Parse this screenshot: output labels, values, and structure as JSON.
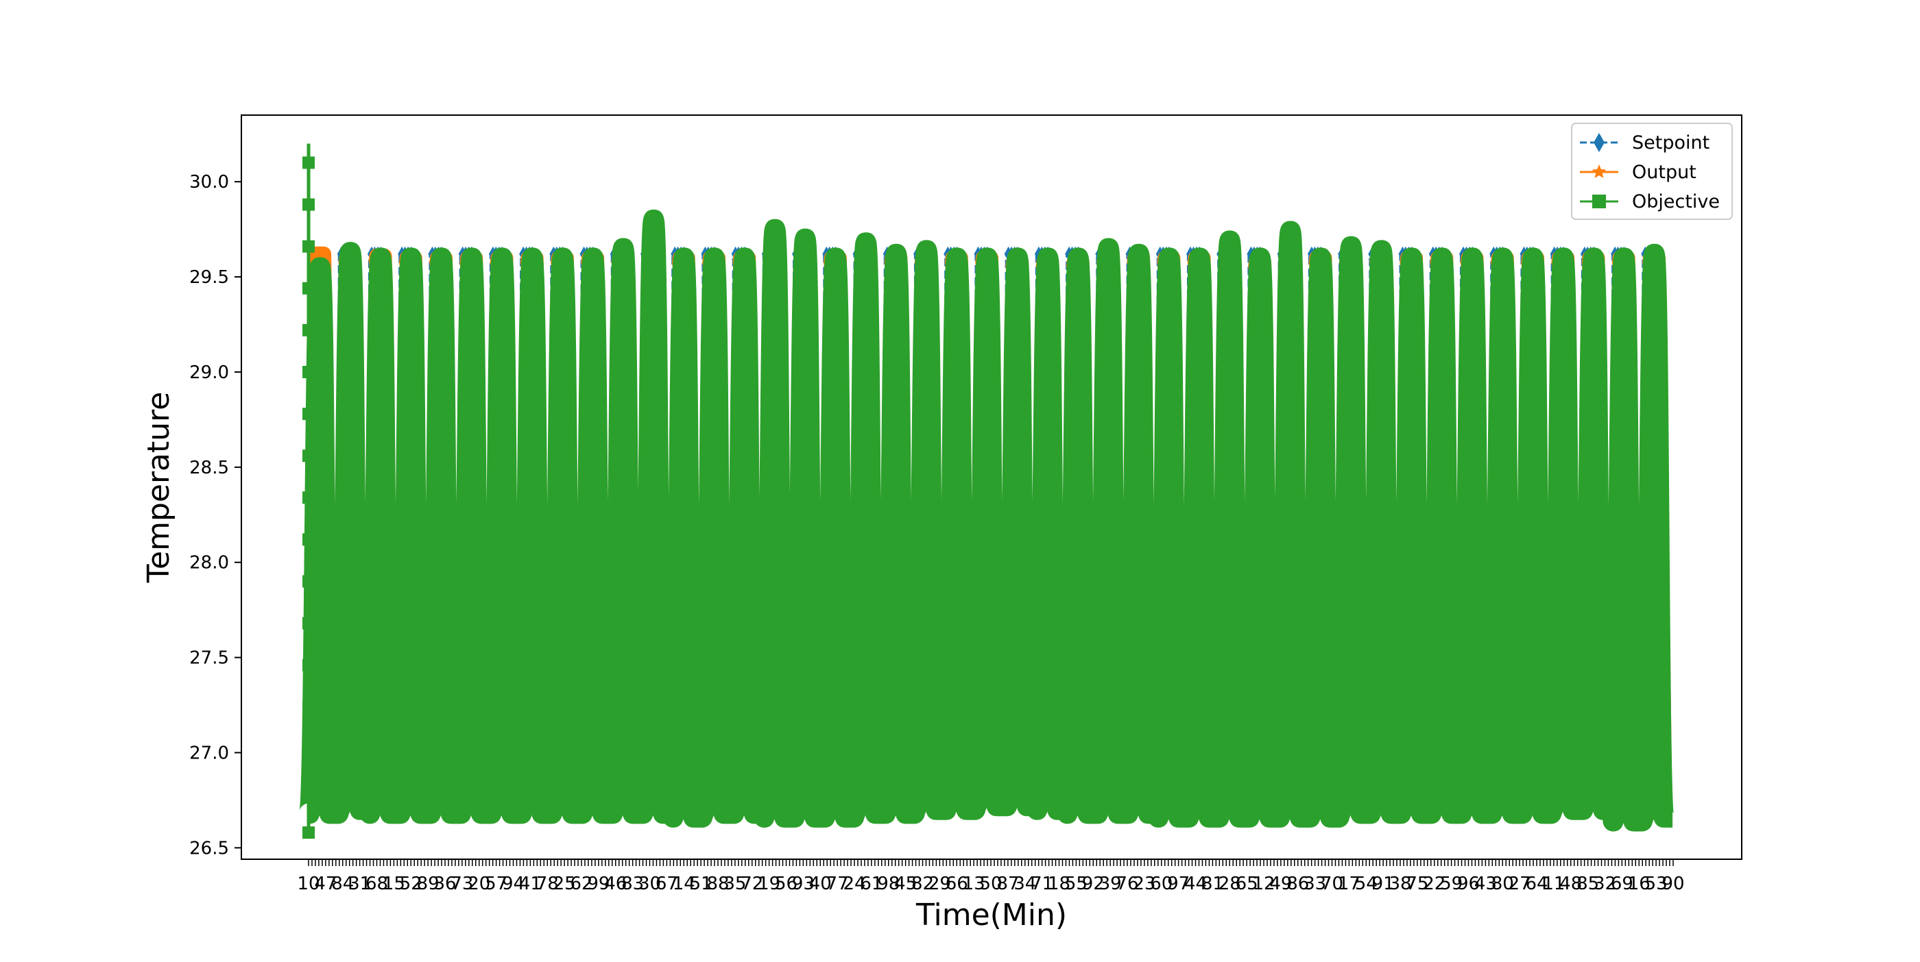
{
  "chart_data": {
    "type": "line",
    "title": "",
    "xlabel": "Time(Min)",
    "ylabel": "Temperature",
    "xlim": [
      0,
      45
    ],
    "ylim": [
      26.44,
      30.35
    ],
    "yticks": [
      26.5,
      27.0,
      27.5,
      28.0,
      28.5,
      29.0,
      29.5,
      30.0
    ],
    "ytick_labels": [
      "26.5",
      "27.0",
      "27.5",
      "28.0",
      "28.5",
      "29.0",
      "29.5",
      "30.0"
    ],
    "xticks_note": "dense overlapping tick labels along the x-axis",
    "legend_position": "top-right",
    "grid": false,
    "cycles": 45,
    "series": [
      {
        "name": "Setpoint",
        "color": "#1f77b4",
        "marker": "diamond",
        "linestyle": "dashed",
        "description": "square-wave between high and low set temperatures",
        "high": 29.62,
        "low": 26.7
      },
      {
        "name": "Output",
        "color": "#ff7f0e",
        "marker": "star",
        "linestyle": "solid",
        "description": "tracks setpoint, oscillating between about 26.7 and 29.6",
        "peaks": [
          29.62,
          29.6,
          29.61,
          29.6,
          29.6,
          29.6,
          29.6,
          29.6,
          29.6,
          29.6,
          29.6,
          29.58,
          29.6,
          29.6,
          29.6,
          29.6,
          29.58,
          29.6,
          29.6,
          29.6,
          29.6,
          29.6,
          29.6,
          29.58,
          29.58,
          29.58,
          29.6,
          29.6,
          29.6,
          29.6,
          29.6,
          29.58,
          29.6,
          29.6,
          29.6,
          29.6,
          29.6,
          29.6,
          29.6,
          29.6,
          29.6,
          29.6,
          29.6,
          29.6,
          29.6
        ]
      },
      {
        "name": "Objective",
        "color": "#2ca02c",
        "marker": "square",
        "linestyle": "solid",
        "description": "oscillates between about 26.65 and 29.6, with an initial spike near 30.2",
        "initial_max": 30.2,
        "initial_min": 26.58,
        "peaks": [
          29.55,
          29.63,
          29.6,
          29.6,
          29.6,
          29.6,
          29.6,
          29.6,
          29.6,
          29.6,
          29.65,
          29.8,
          29.6,
          29.6,
          29.6,
          29.75,
          29.7,
          29.6,
          29.68,
          29.62,
          29.64,
          29.6,
          29.6,
          29.6,
          29.6,
          29.6,
          29.65,
          29.62,
          29.6,
          29.6,
          29.69,
          29.6,
          29.74,
          29.6,
          29.66,
          29.64,
          29.6,
          29.6,
          29.6,
          29.6,
          29.6,
          29.6,
          29.6,
          29.6,
          29.62
        ],
        "troughs": [
          26.68,
          26.7,
          26.68,
          26.68,
          26.68,
          26.68,
          26.68,
          26.68,
          26.68,
          26.68,
          26.68,
          26.68,
          26.66,
          26.68,
          26.68,
          26.66,
          26.66,
          26.66,
          26.68,
          26.68,
          26.7,
          26.7,
          26.72,
          26.72,
          26.7,
          26.68,
          26.68,
          26.68,
          26.66,
          26.66,
          26.66,
          26.66,
          26.66,
          26.66,
          26.68,
          26.68,
          26.68,
          26.68,
          26.68,
          26.68,
          26.68,
          26.7,
          26.7,
          26.64,
          26.66
        ]
      }
    ]
  }
}
